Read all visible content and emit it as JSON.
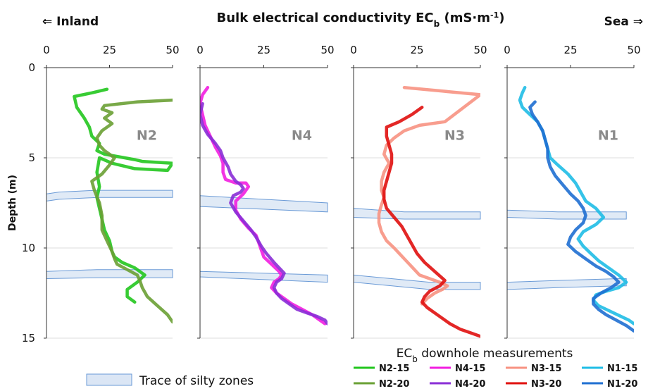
{
  "header": {
    "left_label": "⇐ Inland",
    "title_main": "Bulk electrical conductivity EC",
    "title_sub": "b",
    "title_unit_open": " (mS·m",
    "title_unit_sup": "-1",
    "title_unit_close": ")",
    "right_label": "Sea ⇒"
  },
  "legend": {
    "silty_label": "Trace of silty zones",
    "title_main": "EC",
    "title_sub": "b",
    "title_rest": " downhole measurements",
    "entries": [
      {
        "label": "N2-15",
        "color": "#22c61e"
      },
      {
        "label": "N4-15",
        "color": "#f21ee0"
      },
      {
        "label": "N3-15",
        "color": "#f79282"
      },
      {
        "label": "N1-15",
        "color": "#1fbde6"
      },
      {
        "label": "N2-20",
        "color": "#6aa034"
      },
      {
        "label": "N4-20",
        "color": "#8a2ed6"
      },
      {
        "label": "N3-20",
        "color": "#e0100e"
      },
      {
        "label": "N1-20",
        "color": "#1f6fd1"
      }
    ]
  },
  "colors": {
    "silty_fill": "#dbe6f5",
    "silty_stroke": "#6a9ad6",
    "grid": "#dddddd",
    "axis": "#333333",
    "panel_label": "#8a8a8a"
  },
  "chart_data": [
    {
      "type": "line",
      "panel": "N2",
      "xlabel": "Bulk electrical conductivity ECb (mS·m-1)",
      "ylabel": "Depth (m)",
      "xlim": [
        0,
        50
      ],
      "ylim": [
        15,
        0
      ],
      "xticks": [
        0,
        25,
        50
      ],
      "yticks": [
        0,
        5,
        10,
        15
      ],
      "grid": true,
      "silty_zones": [
        {
          "x": [
            0,
            5,
            20,
            50
          ],
          "top": [
            7.0,
            6.9,
            6.8,
            6.8
          ],
          "bottom": [
            7.4,
            7.3,
            7.2,
            7.2
          ]
        },
        {
          "x": [
            0,
            20,
            40,
            50
          ],
          "top": [
            11.3,
            11.2,
            11.2,
            11.2
          ],
          "bottom": [
            11.7,
            11.65,
            11.65,
            11.65
          ]
        }
      ],
      "series": [
        {
          "name": "N2-15",
          "color": "#22c61e",
          "x": [
            24,
            18,
            11,
            12,
            15,
            17,
            18,
            21,
            20,
            23,
            31,
            35,
            38,
            50,
            48,
            35,
            26,
            21,
            20,
            21,
            20,
            21,
            22,
            23,
            25,
            26,
            27,
            30,
            35,
            39,
            36,
            32,
            32,
            35
          ],
          "y": [
            1.2,
            1.4,
            1.6,
            2.2,
            2.8,
            3.3,
            3.8,
            4.2,
            4.6,
            4.8,
            5.0,
            5.1,
            5.2,
            5.3,
            5.7,
            5.6,
            5.3,
            5.0,
            5.8,
            6.6,
            7.2,
            7.8,
            8.4,
            9.0,
            9.6,
            10.2,
            10.5,
            10.8,
            11.1,
            11.5,
            11.9,
            12.3,
            12.7,
            13.0
          ]
        },
        {
          "name": "N2-20",
          "color": "#6aa034",
          "x": [
            50,
            36,
            23,
            22,
            26,
            23,
            26,
            22,
            20,
            21,
            23,
            27,
            25,
            22,
            18,
            19,
            21,
            22,
            22,
            24,
            26,
            27,
            28,
            32,
            36,
            37,
            38,
            40,
            44,
            48,
            50
          ],
          "y": [
            1.8,
            1.9,
            2.1,
            2.3,
            2.5,
            2.8,
            3.1,
            3.5,
            3.9,
            4.3,
            4.6,
            5.0,
            5.4,
            5.9,
            6.3,
            6.8,
            7.5,
            8.2,
            9.0,
            9.6,
            10.2,
            10.6,
            10.9,
            11.2,
            11.5,
            11.8,
            12.2,
            12.7,
            13.2,
            13.7,
            14.1
          ]
        }
      ]
    },
    {
      "type": "line",
      "panel": "N4",
      "xlim": [
        0,
        50
      ],
      "ylim": [
        15,
        0
      ],
      "xticks": [
        0,
        25,
        50
      ],
      "yticks": [
        0,
        5,
        10,
        15
      ],
      "grid": true,
      "silty_zones": [
        {
          "x": [
            0,
            50
          ],
          "top": [
            7.1,
            7.5
          ],
          "bottom": [
            7.7,
            8.0
          ]
        },
        {
          "x": [
            0,
            50
          ],
          "top": [
            11.3,
            11.5
          ],
          "bottom": [
            11.6,
            11.9
          ]
        }
      ],
      "series": [
        {
          "name": "N4-15",
          "color": "#f21ee0",
          "x": [
            3,
            1,
            0,
            1,
            2,
            4,
            6,
            8,
            9,
            9,
            10,
            14,
            18,
            19,
            17,
            14,
            14,
            16,
            19,
            22,
            23,
            24,
            25,
            28,
            31,
            32,
            31,
            29,
            28,
            30,
            33,
            36,
            40,
            44,
            47,
            49
          ],
          "y": [
            1.1,
            1.5,
            2.0,
            2.6,
            3.2,
            3.8,
            4.4,
            4.9,
            5.3,
            5.8,
            6.2,
            6.4,
            6.4,
            6.6,
            7.0,
            7.4,
            7.9,
            8.4,
            8.9,
            9.3,
            9.7,
            10.1,
            10.5,
            10.9,
            11.3,
            11.5,
            11.7,
            11.9,
            12.2,
            12.5,
            12.8,
            13.1,
            13.4,
            13.7,
            14.0,
            14.2
          ]
        },
        {
          "name": "N4-20",
          "color": "#8a2ed6",
          "x": [
            1,
            0,
            1,
            3,
            6,
            8,
            9,
            11,
            12,
            14,
            16,
            17,
            16,
            13,
            12,
            14,
            17,
            20,
            22,
            24,
            26,
            29,
            31,
            33,
            32,
            30,
            29,
            30,
            32,
            35,
            38,
            42,
            46,
            49,
            50
          ],
          "y": [
            2.0,
            2.6,
            3.2,
            3.7,
            4.2,
            4.6,
            5.0,
            5.5,
            5.9,
            6.3,
            6.5,
            6.7,
            6.9,
            7.1,
            7.5,
            8.0,
            8.5,
            9.0,
            9.4,
            9.9,
            10.3,
            10.8,
            11.1,
            11.4,
            11.7,
            11.9,
            12.2,
            12.5,
            12.8,
            13.1,
            13.4,
            13.6,
            13.8,
            14.0,
            14.2
          ]
        }
      ]
    },
    {
      "type": "line",
      "panel": "N3",
      "xlim": [
        0,
        50
      ],
      "ylim": [
        15,
        0
      ],
      "xticks": [
        0,
        25,
        50
      ],
      "yticks": [
        0,
        5,
        10,
        15
      ],
      "grid": true,
      "silty_zones": [
        {
          "x": [
            0,
            10,
            20,
            50
          ],
          "top": [
            7.8,
            7.9,
            8.0,
            8.0
          ],
          "bottom": [
            8.3,
            8.35,
            8.4,
            8.4
          ]
        },
        {
          "x": [
            0,
            30,
            50
          ],
          "top": [
            11.5,
            11.9,
            11.9
          ],
          "bottom": [
            11.9,
            12.3,
            12.3
          ]
        }
      ],
      "series": [
        {
          "name": "N3-15",
          "color": "#f79282",
          "x": [
            20,
            35,
            50,
            36,
            26,
            20,
            16,
            13,
            12,
            14,
            12,
            11,
            11,
            12,
            11,
            10,
            10,
            11,
            13,
            16,
            18,
            20,
            22,
            24,
            26,
            30,
            34,
            37,
            35,
            32,
            29,
            27
          ],
          "y": [
            1.1,
            1.3,
            1.5,
            3.0,
            3.2,
            3.5,
            3.9,
            4.3,
            4.8,
            5.3,
            5.8,
            6.3,
            6.8,
            7.2,
            7.6,
            8.1,
            8.6,
            9.1,
            9.6,
            10.0,
            10.3,
            10.6,
            10.9,
            11.2,
            11.5,
            11.7,
            11.9,
            12.1,
            12.3,
            12.5,
            12.8,
            13.1
          ]
        },
        {
          "name": "N3-20",
          "color": "#e0100e",
          "x": [
            27,
            23,
            18,
            13,
            13,
            14,
            15,
            15,
            14,
            13,
            12,
            12,
            13,
            16,
            19,
            21,
            23,
            25,
            28,
            32,
            36,
            34,
            30,
            28,
            27,
            29,
            32,
            35,
            38,
            42,
            46,
            50
          ],
          "y": [
            2.2,
            2.6,
            3.0,
            3.3,
            3.8,
            4.3,
            4.8,
            5.3,
            5.8,
            6.3,
            6.8,
            7.3,
            7.8,
            8.3,
            8.8,
            9.3,
            9.8,
            10.3,
            10.8,
            11.3,
            11.8,
            12.1,
            12.4,
            12.7,
            13.0,
            13.3,
            13.6,
            13.9,
            14.2,
            14.5,
            14.7,
            14.9
          ]
        }
      ]
    },
    {
      "type": "line",
      "panel": "N1",
      "xlim": [
        0,
        50
      ],
      "ylim": [
        15,
        0
      ],
      "xticks": [
        0,
        25,
        50
      ],
      "yticks": [
        0,
        5,
        10,
        15
      ],
      "grid": true,
      "silty_zones": [
        {
          "x": [
            0,
            20,
            40,
            47
          ],
          "top": [
            7.9,
            8.0,
            8.0,
            8.0
          ],
          "bottom": [
            8.3,
            8.4,
            8.4,
            8.4
          ]
        },
        {
          "x": [
            0,
            20,
            44,
            47
          ],
          "top": [
            11.9,
            11.8,
            11.7,
            11.7
          ],
          "bottom": [
            12.3,
            12.2,
            12.1,
            12.1
          ]
        }
      ],
      "series": [
        {
          "name": "N1-15",
          "color": "#1fbde6",
          "x": [
            7,
            6,
            5,
            6,
            9,
            12,
            14,
            15,
            16,
            17,
            20,
            24,
            27,
            29,
            31,
            35,
            38,
            35,
            30,
            28,
            30,
            33,
            36,
            40,
            44,
            47,
            44,
            39,
            35,
            34,
            36,
            39,
            42,
            45,
            48,
            50
          ],
          "y": [
            1.1,
            1.4,
            1.8,
            2.2,
            2.6,
            3.0,
            3.5,
            4.0,
            4.5,
            5.0,
            5.4,
            5.9,
            6.4,
            6.9,
            7.4,
            7.8,
            8.3,
            8.7,
            9.1,
            9.5,
            9.9,
            10.3,
            10.7,
            11.1,
            11.5,
            11.9,
            12.2,
            12.4,
            12.6,
            12.9,
            13.2,
            13.4,
            13.6,
            13.8,
            14.0,
            14.2
          ]
        },
        {
          "name": "N1-20",
          "color": "#1f6fd1",
          "x": [
            11,
            9,
            10,
            12,
            14,
            15,
            16,
            16,
            17,
            19,
            22,
            25,
            28,
            30,
            31,
            30,
            27,
            25,
            24,
            27,
            31,
            35,
            39,
            42,
            44,
            41,
            37,
            34,
            34,
            36,
            39,
            43,
            47,
            50
          ],
          "y": [
            1.9,
            2.2,
            2.6,
            3.0,
            3.5,
            4.0,
            4.5,
            5.0,
            5.5,
            6.0,
            6.5,
            7.0,
            7.4,
            7.8,
            8.2,
            8.6,
            9.0,
            9.4,
            9.8,
            10.2,
            10.6,
            11.0,
            11.3,
            11.6,
            11.9,
            12.2,
            12.5,
            12.8,
            13.1,
            13.4,
            13.7,
            14.0,
            14.3,
            14.6
          ]
        }
      ]
    }
  ]
}
